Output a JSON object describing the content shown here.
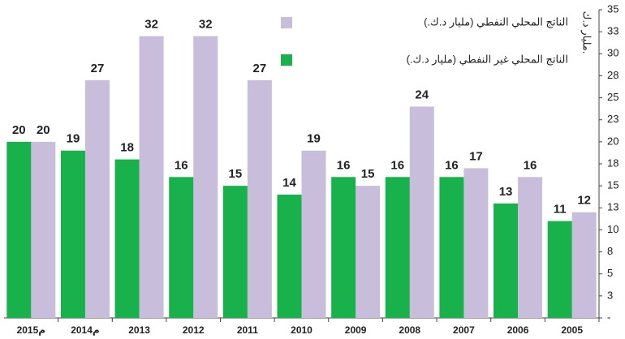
{
  "chart_data": {
    "type": "bar",
    "y_label": "مليار د.ك.",
    "categories": [
      "2015م",
      "2014م",
      "2013",
      "2012",
      "2011",
      "2010",
      "2009",
      "2008",
      "2007",
      "2006",
      "2005"
    ],
    "series": [
      {
        "name": "الناتج المحلي النفطي (مليار د.ك.)",
        "color": "#c8bedc",
        "values": [
          20,
          27,
          32,
          32,
          27,
          19,
          15,
          24,
          17,
          16,
          12
        ]
      },
      {
        "name": "الناتج المحلي غير النفطي (مليار د.ك.)",
        "color": "#19b14c",
        "values": [
          20,
          19,
          18,
          16,
          15,
          14,
          16,
          16,
          16,
          13,
          11
        ]
      }
    ],
    "ylim": [
      0,
      35
    ],
    "yticks": [
      {
        "value": 0,
        "label": "-"
      },
      {
        "value": 2.5,
        "label": "3"
      },
      5,
      {
        "value": 7.5,
        "label": "8"
      },
      10,
      {
        "value": 12.5,
        "label": "13"
      },
      15,
      {
        "value": 17.5,
        "label": "18"
      },
      20,
      {
        "value": 22.5,
        "label": "23"
      },
      25,
      {
        "value": 27.5,
        "label": "28"
      },
      30,
      {
        "value": 32.5,
        "label": "33"
      },
      35
    ]
  }
}
